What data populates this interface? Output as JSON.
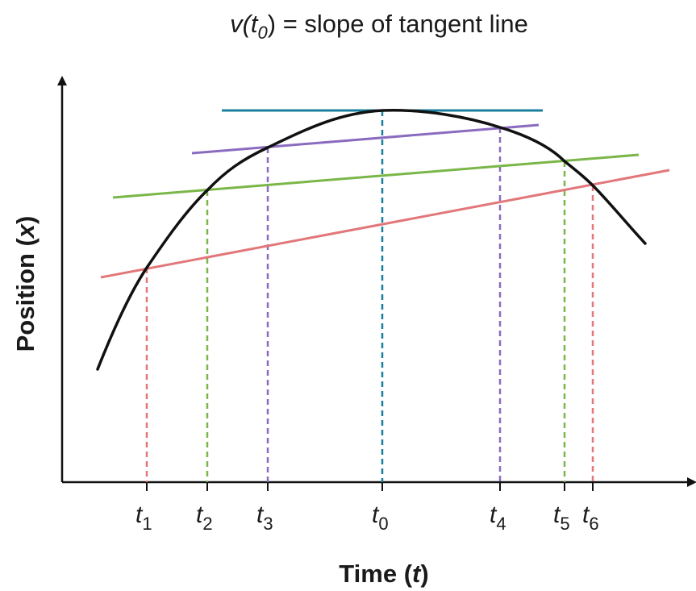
{
  "title": {
    "func": "v(t",
    "sub": "0",
    "close": ")",
    "rest": " = slope of tangent line"
  },
  "axes": {
    "y_label": {
      "text": "Position (",
      "var": "x",
      "close": ")"
    },
    "x_label": {
      "text": "Time (",
      "var": "t",
      "close": ")"
    }
  },
  "ticks": [
    {
      "base": "t",
      "sub": "1"
    },
    {
      "base": "t",
      "sub": "2"
    },
    {
      "base": "t",
      "sub": "3"
    },
    {
      "base": "t",
      "sub": "0"
    },
    {
      "base": "t",
      "sub": "4"
    },
    {
      "base": "t",
      "sub": "5"
    },
    {
      "base": "t",
      "sub": "6"
    }
  ],
  "colors": {
    "curve": "#111111",
    "axis": "#111111",
    "teal": "#1a7f9c",
    "purple": "#8a6bbf",
    "green": "#7ab648",
    "red": "#e2777a"
  }
}
